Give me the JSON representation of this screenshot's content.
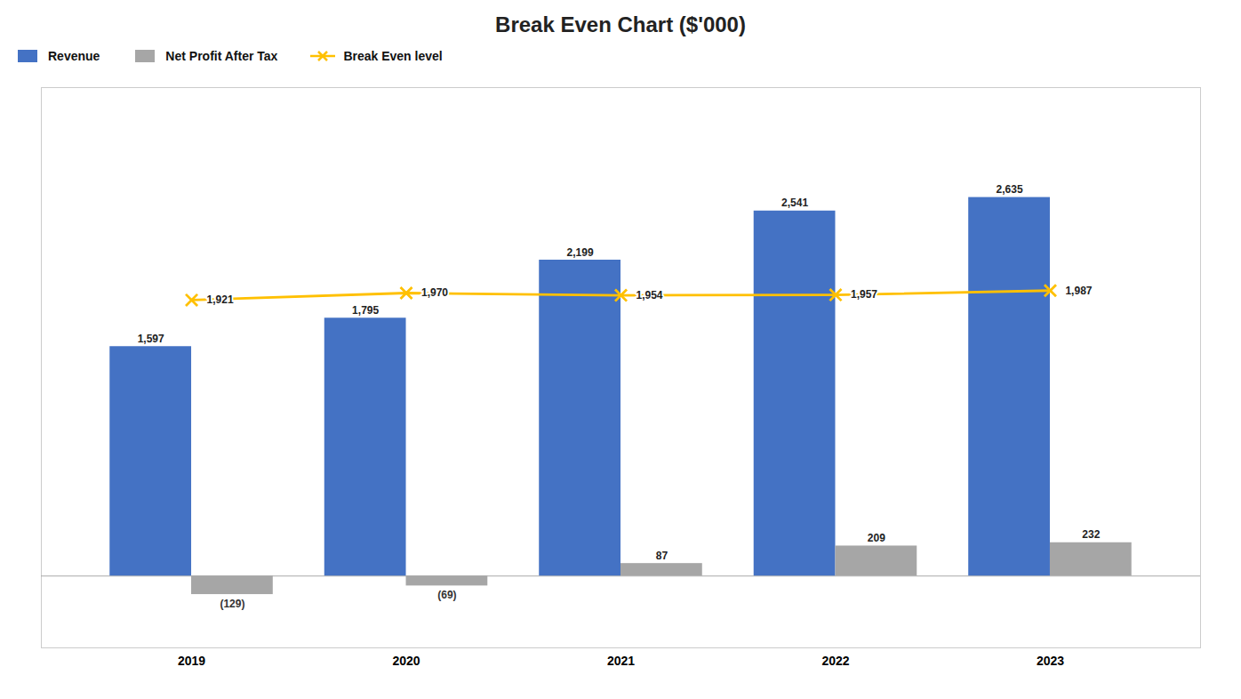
{
  "chart_data": {
    "type": "bar",
    "title": "Break Even Chart ($'000)",
    "categories": [
      "2019",
      "2020",
      "2021",
      "2022",
      "2023"
    ],
    "series": [
      {
        "name": "Revenue",
        "type": "bar",
        "color": "#4472C4",
        "values": [
          1597,
          1795,
          2199,
          2541,
          2635
        ],
        "value_labels": [
          "1,597",
          "1,795",
          "2,199",
          "2,541",
          "2,635"
        ]
      },
      {
        "name": "Net Profit After Tax",
        "type": "bar",
        "color": "#A6A6A6",
        "values": [
          -129,
          -69,
          87,
          209,
          232
        ],
        "value_labels": [
          "(129)",
          "(69)",
          "87",
          "209",
          "232"
        ]
      },
      {
        "name": "Break Even level",
        "type": "line",
        "color": "#FFC000",
        "marker": "x",
        "line_style": "solid",
        "values": [
          1921,
          1970,
          1954,
          1957,
          1987
        ],
        "value_labels": [
          "1,921",
          "1,970",
          "1,954",
          "1,957",
          "1,987"
        ]
      }
    ],
    "ylim": [
      -500,
      3400
    ],
    "grid": false,
    "legend": "upper left",
    "data_labels": true,
    "tick_labels": "x"
  }
}
